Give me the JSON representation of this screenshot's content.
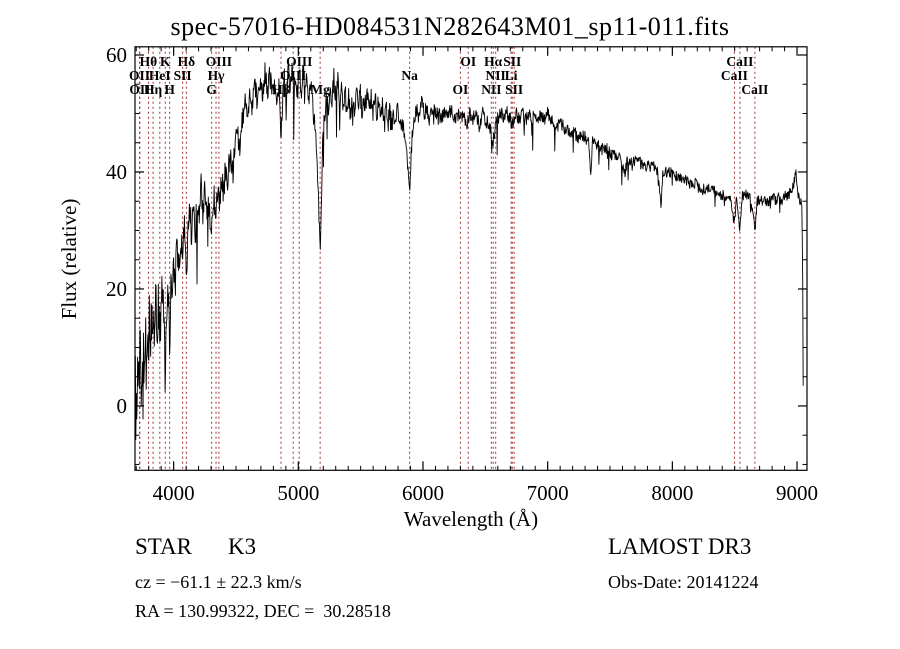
{
  "chart_data": {
    "type": "line",
    "title": "spec-57016-HD084531N282643M01_sp11-011.fits",
    "xlabel": "Wavelength (Å)",
    "ylabel": "Flux (relative)",
    "xlim": [
      3690,
      9080
    ],
    "ylim": [
      -11,
      61.4
    ],
    "xticks": [
      4000,
      5000,
      6000,
      7000,
      8000,
      9000
    ],
    "yticks": [
      0,
      20,
      40,
      60
    ],
    "x_minor_step": 100,
    "y_minor_step": 5,
    "grid": false,
    "curve_color": "#000000",
    "line_marker_color": "#a03232",
    "spectral_lines": [
      {
        "label": "OII",
        "wavelength": 3726,
        "row": 2
      },
      {
        "label": "OII",
        "wavelength": 3729,
        "row": 3
      },
      {
        "label": "Hθ",
        "wavelength": 3798,
        "row": 1
      },
      {
        "label": "Hη",
        "wavelength": 3835,
        "row": 3
      },
      {
        "label": "HeI",
        "wavelength": 3889,
        "row": 2
      },
      {
        "label": "K",
        "wavelength": 3933,
        "row": 1
      },
      {
        "label": "H",
        "wavelength": 3968,
        "row": 3
      },
      {
        "label": "SII",
        "wavelength": 4072,
        "row": 2
      },
      {
        "label": "Hδ",
        "wavelength": 4102,
        "row": 1
      },
      {
        "label": "G",
        "wavelength": 4305,
        "row": 3
      },
      {
        "label": "Hγ",
        "wavelength": 4340,
        "row": 2
      },
      {
        "label": "OIII",
        "wavelength": 4363,
        "row": 1
      },
      {
        "label": "Hβ",
        "wavelength": 4861,
        "row": 3
      },
      {
        "label": "OIII",
        "wavelength": 4959,
        "row": 2
      },
      {
        "label": "OIII",
        "wavelength": 5007,
        "row": 1
      },
      {
        "label": "Mg",
        "wavelength": 5175,
        "row": 3
      },
      {
        "label": "Na",
        "wavelength": 5893,
        "row": 2
      },
      {
        "label": "OI",
        "wavelength": 6300,
        "row": 3
      },
      {
        "label": "OI",
        "wavelength": 6363,
        "row": 1
      },
      {
        "label": "NII",
        "wavelength": 6548,
        "row": 3
      },
      {
        "label": "Hα",
        "wavelength": 6563,
        "row": 1
      },
      {
        "label": "NII",
        "wavelength": 6583,
        "row": 2
      },
      {
        "label": "Li",
        "wavelength": 6707,
        "row": 2
      },
      {
        "label": "SII",
        "wavelength": 6716,
        "row": 1
      },
      {
        "label": "SII",
        "wavelength": 6731,
        "row": 3
      },
      {
        "label": "CaII",
        "wavelength": 8498,
        "row": 2
      },
      {
        "label": "CaII",
        "wavelength": 8542,
        "row": 1
      },
      {
        "label": "CaII",
        "wavelength": 8662,
        "row": 3
      }
    ],
    "spectrum_anchors": [
      [
        3693,
        5
      ],
      [
        3697,
        -9
      ],
      [
        3701,
        10
      ],
      [
        3705,
        -6
      ],
      [
        3709,
        13
      ],
      [
        3714,
        2
      ],
      [
        3719,
        14
      ],
      [
        3724,
        4
      ],
      [
        3729,
        11
      ],
      [
        3735,
        14
      ],
      [
        3741,
        3
      ],
      [
        3747,
        9
      ],
      [
        3753,
        -2
      ],
      [
        3759,
        11
      ],
      [
        3766,
        6
      ],
      [
        3773,
        13
      ],
      [
        3781,
        7
      ],
      [
        3789,
        14
      ],
      [
        3797,
        9
      ],
      [
        3806,
        15
      ],
      [
        3815,
        11
      ],
      [
        3824,
        16
      ],
      [
        3835,
        9
      ],
      [
        3845,
        15
      ],
      [
        3855,
        18
      ],
      [
        3866,
        13
      ],
      [
        3877,
        18
      ],
      [
        3889,
        11
      ],
      [
        3900,
        17
      ],
      [
        3912,
        20
      ],
      [
        3922,
        15
      ],
      [
        3933,
        3
      ],
      [
        3944,
        17
      ],
      [
        3955,
        21
      ],
      [
        3968,
        9
      ],
      [
        3978,
        22
      ],
      [
        3990,
        19
      ],
      [
        4000,
        25
      ],
      [
        4012,
        21
      ],
      [
        4025,
        27
      ],
      [
        4040,
        23
      ],
      [
        4055,
        29
      ],
      [
        4072,
        26
      ],
      [
        4088,
        30
      ],
      [
        4102,
        23
      ],
      [
        4115,
        30
      ],
      [
        4130,
        33
      ],
      [
        4145,
        29
      ],
      [
        4160,
        34
      ],
      [
        4175,
        30
      ],
      [
        4190,
        35
      ],
      [
        4205,
        32
      ],
      [
        4220,
        37
      ],
      [
        4235,
        33
      ],
      [
        4250,
        36
      ],
      [
        4265,
        32
      ],
      [
        4280,
        35
      ],
      [
        4305,
        30
      ],
      [
        4320,
        36
      ],
      [
        4340,
        33
      ],
      [
        4355,
        38
      ],
      [
        4370,
        35
      ],
      [
        4385,
        39
      ],
      [
        4400,
        37
      ],
      [
        4415,
        40
      ],
      [
        4430,
        37
      ],
      [
        4445,
        41
      ],
      [
        4460,
        43
      ],
      [
        4475,
        40
      ],
      [
        4490,
        44
      ],
      [
        4510,
        47
      ],
      [
        4530,
        44
      ],
      [
        4550,
        49
      ],
      [
        4570,
        52
      ],
      [
        4590,
        49
      ],
      [
        4610,
        54
      ],
      [
        4630,
        51
      ],
      [
        4650,
        55
      ],
      [
        4670,
        52
      ],
      [
        4690,
        56
      ],
      [
        4710,
        53
      ],
      [
        4730,
        57
      ],
      [
        4750,
        54
      ],
      [
        4770,
        57
      ],
      [
        4790,
        53
      ],
      [
        4810,
        56
      ],
      [
        4830,
        52
      ],
      [
        4845,
        55
      ],
      [
        4861,
        46
      ],
      [
        4875,
        53
      ],
      [
        4890,
        56
      ],
      [
        4905,
        53
      ],
      [
        4920,
        57
      ],
      [
        4935,
        54
      ],
      [
        4950,
        57
      ],
      [
        4965,
        53
      ],
      [
        4980,
        56
      ],
      [
        4995,
        54
      ],
      [
        5010,
        57
      ],
      [
        5025,
        54
      ],
      [
        5040,
        57
      ],
      [
        5055,
        53
      ],
      [
        5070,
        56
      ],
      [
        5085,
        52
      ],
      [
        5100,
        55
      ],
      [
        5115,
        51
      ],
      [
        5130,
        48
      ],
      [
        5145,
        44
      ],
      [
        5160,
        38
      ],
      [
        5175,
        25
      ],
      [
        5185,
        33
      ],
      [
        5195,
        44
      ],
      [
        5210,
        50
      ],
      [
        5225,
        53
      ],
      [
        5240,
        51
      ],
      [
        5255,
        55
      ],
      [
        5270,
        52
      ],
      [
        5285,
        56
      ],
      [
        5300,
        53
      ],
      [
        5315,
        56
      ],
      [
        5330,
        52
      ],
      [
        5345,
        55
      ],
      [
        5360,
        51
      ],
      [
        5375,
        54
      ],
      [
        5390,
        50
      ],
      [
        5405,
        53
      ],
      [
        5420,
        49
      ],
      [
        5435,
        53
      ],
      [
        5450,
        50
      ],
      [
        5465,
        54
      ],
      [
        5480,
        51
      ],
      [
        5495,
        54
      ],
      [
        5510,
        50
      ],
      [
        5525,
        53
      ],
      [
        5540,
        51
      ],
      [
        5555,
        54
      ],
      [
        5570,
        51
      ],
      [
        5585,
        53
      ],
      [
        5600,
        50
      ],
      [
        5615,
        53
      ],
      [
        5630,
        50
      ],
      [
        5645,
        52
      ],
      [
        5660,
        49
      ],
      [
        5675,
        52
      ],
      [
        5690,
        48
      ],
      [
        5705,
        51
      ],
      [
        5720,
        48
      ],
      [
        5735,
        51
      ],
      [
        5750,
        48
      ],
      [
        5765,
        50
      ],
      [
        5780,
        48
      ],
      [
        5795,
        51
      ],
      [
        5810,
        49
      ],
      [
        5825,
        47
      ],
      [
        5840,
        48
      ],
      [
        5855,
        46
      ],
      [
        5870,
        44
      ],
      [
        5893,
        37
      ],
      [
        5905,
        43
      ],
      [
        5920,
        48
      ],
      [
        5935,
        50
      ],
      [
        5950,
        51
      ],
      [
        5970,
        49
      ],
      [
        5990,
        52
      ],
      [
        6010,
        50
      ],
      [
        6030,
        51
      ],
      [
        6050,
        49
      ],
      [
        6075,
        51
      ],
      [
        6100,
        50
      ],
      [
        6125,
        51
      ],
      [
        6150,
        49
      ],
      [
        6175,
        50
      ],
      [
        6200,
        49
      ],
      [
        6225,
        51
      ],
      [
        6250,
        49
      ],
      [
        6275,
        50
      ],
      [
        6300,
        49
      ],
      [
        6325,
        50
      ],
      [
        6350,
        48
      ],
      [
        6375,
        50
      ],
      [
        6400,
        49
      ],
      [
        6425,
        50
      ],
      [
        6450,
        48
      ],
      [
        6475,
        50
      ],
      [
        6500,
        49
      ],
      [
        6525,
        48
      ],
      [
        6545,
        47
      ],
      [
        6563,
        45
      ],
      [
        6580,
        48
      ],
      [
        6600,
        49
      ],
      [
        6625,
        50
      ],
      [
        6650,
        49
      ],
      [
        6675,
        50
      ],
      [
        6700,
        49
      ],
      [
        6725,
        48
      ],
      [
        6750,
        50
      ],
      [
        6775,
        49
      ],
      [
        6800,
        50
      ],
      [
        6825,
        49
      ],
      [
        6850,
        50
      ],
      [
        6875,
        49
      ],
      [
        6900,
        50
      ],
      [
        6925,
        49
      ],
      [
        6950,
        50
      ],
      [
        6975,
        49
      ],
      [
        7000,
        50
      ],
      [
        7030,
        49
      ],
      [
        7060,
        48
      ],
      [
        7090,
        48
      ],
      [
        7120,
        48
      ],
      [
        7150,
        47
      ],
      [
        7180,
        47
      ],
      [
        7210,
        47
      ],
      [
        7240,
        46
      ],
      [
        7270,
        46
      ],
      [
        7300,
        46
      ],
      [
        7330,
        45
      ],
      [
        7345,
        40
      ],
      [
        7360,
        45
      ],
      [
        7390,
        45
      ],
      [
        7420,
        44
      ],
      [
        7450,
        44
      ],
      [
        7480,
        44
      ],
      [
        7510,
        43
      ],
      [
        7540,
        43
      ],
      [
        7570,
        43
      ],
      [
        7600,
        41
      ],
      [
        7620,
        40
      ],
      [
        7640,
        42
      ],
      [
        7670,
        42
      ],
      [
        7700,
        42
      ],
      [
        7730,
        42
      ],
      [
        7760,
        41
      ],
      [
        7790,
        41
      ],
      [
        7820,
        41
      ],
      [
        7850,
        41
      ],
      [
        7880,
        40
      ],
      [
        7910,
        34
      ],
      [
        7925,
        40
      ],
      [
        7950,
        40
      ],
      [
        7980,
        40
      ],
      [
        8010,
        40
      ],
      [
        8040,
        39
      ],
      [
        8070,
        39
      ],
      [
        8100,
        39
      ],
      [
        8130,
        38
      ],
      [
        8160,
        38
      ],
      [
        8190,
        38
      ],
      [
        8220,
        37
      ],
      [
        8250,
        37
      ],
      [
        8280,
        37
      ],
      [
        8310,
        37
      ],
      [
        8340,
        37
      ],
      [
        8370,
        36
      ],
      [
        8400,
        36
      ],
      [
        8430,
        36
      ],
      [
        8460,
        36
      ],
      [
        8498,
        31
      ],
      [
        8515,
        36
      ],
      [
        8542,
        30
      ],
      [
        8560,
        36
      ],
      [
        8580,
        36
      ],
      [
        8605,
        36
      ],
      [
        8630,
        35
      ],
      [
        8662,
        30
      ],
      [
        8680,
        35
      ],
      [
        8705,
        35
      ],
      [
        8730,
        35
      ],
      [
        8755,
        35
      ],
      [
        8780,
        35
      ],
      [
        8805,
        36
      ],
      [
        8830,
        35
      ],
      [
        8855,
        36
      ],
      [
        8880,
        35
      ],
      [
        8905,
        36
      ],
      [
        8930,
        36
      ],
      [
        8955,
        37
      ],
      [
        8975,
        38
      ],
      [
        8990,
        40
      ],
      [
        9000,
        37
      ],
      [
        9010,
        36
      ],
      [
        9025,
        35
      ],
      [
        9040,
        34
      ],
      [
        9046,
        20
      ],
      [
        9050,
        1
      ]
    ],
    "noise_profile": [
      [
        3690,
        6.0
      ],
      [
        4000,
        3.2
      ],
      [
        4300,
        2.6
      ],
      [
        4600,
        2.3
      ],
      [
        5200,
        2.1
      ],
      [
        6000,
        1.4
      ],
      [
        6800,
        1.2
      ],
      [
        7600,
        1.0
      ],
      [
        9080,
        0.9
      ]
    ]
  },
  "annotations": {
    "class_label": "STAR",
    "subclass_label": "K3",
    "cz_line": "cz = −61.1 ± 22.3 km/s",
    "radec_line": "RA = 130.99322, DEC =  30.28518",
    "survey_label": "LAMOST DR3",
    "obsdate_line": "Obs-Date: 20141224"
  }
}
